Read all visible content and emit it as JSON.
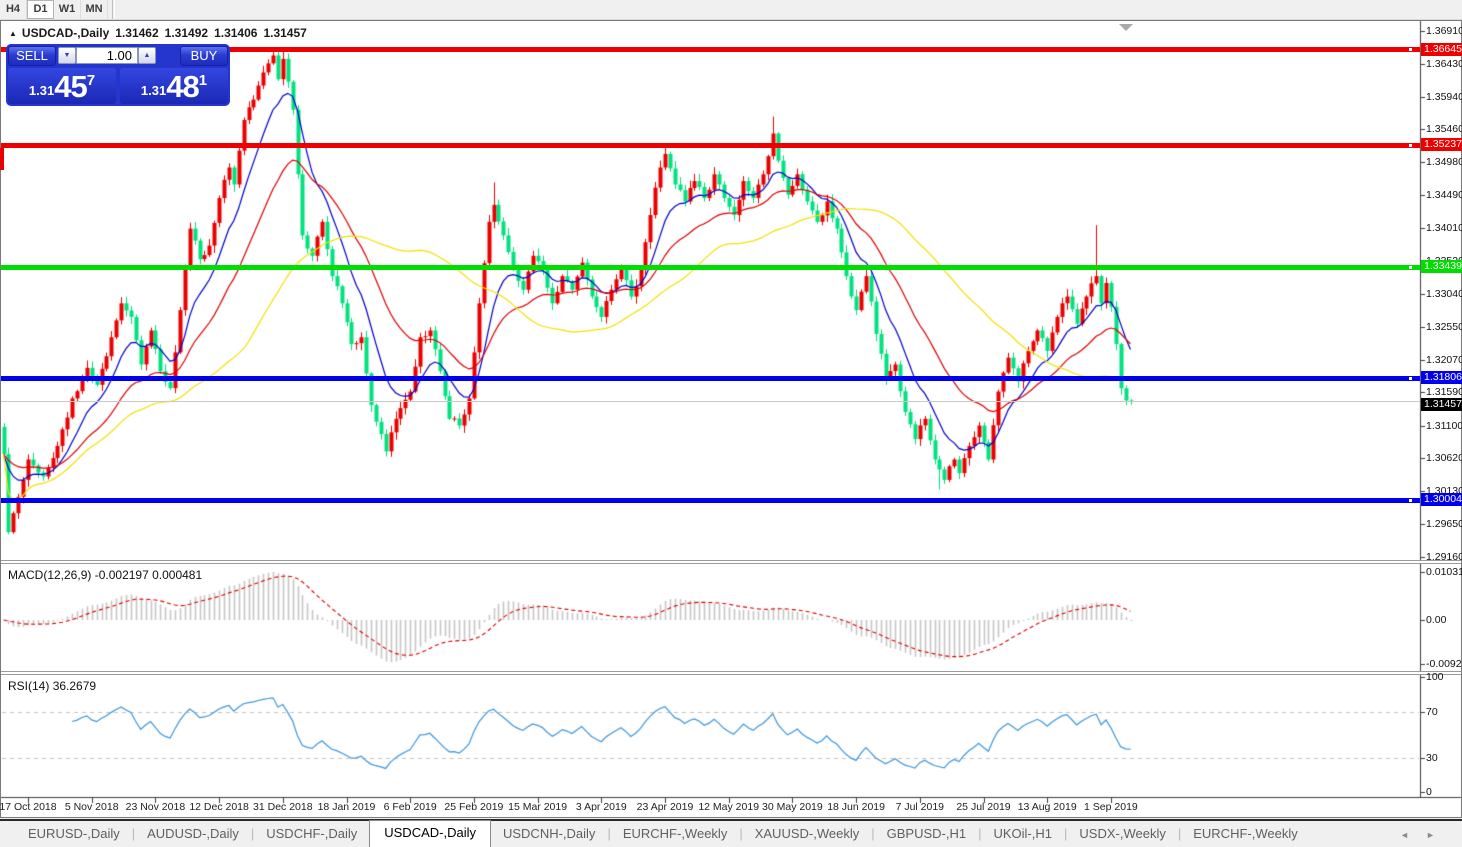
{
  "toolbar": {
    "timeframes": [
      {
        "label": "H4",
        "active": false
      },
      {
        "label": "D1",
        "active": true
      },
      {
        "label": "W1",
        "active": false
      },
      {
        "label": "MN",
        "active": false
      }
    ]
  },
  "window": {
    "collapse_icon": "▲",
    "shift_marker_icon": "triangle-down"
  },
  "chart": {
    "symbol": "USDCAD-,Daily",
    "open": "1.31462",
    "high": "1.31492",
    "low": "1.31406",
    "close": "1.31457"
  },
  "trade_panel": {
    "sell_label": "SELL",
    "buy_label": "BUY",
    "volume": "1.00",
    "down_icon": "▼",
    "up_icon": "▲",
    "sell_price": {
      "prefix": "1.31",
      "big": "45",
      "sup": "7"
    },
    "buy_price": {
      "prefix": "1.31",
      "big": "48",
      "sup": "1"
    }
  },
  "price_axis": {
    "ticks": [
      "1.36910",
      "1.36430",
      "1.35940",
      "1.35460",
      "1.34980",
      "1.34490",
      "1.34010",
      "1.33520",
      "1.33040",
      "1.32550",
      "1.32070",
      "1.31590",
      "1.31100",
      "1.30620",
      "1.30130",
      "1.29650",
      "1.29160"
    ]
  },
  "objects": {
    "hlines": [
      {
        "price": 1.36645,
        "label": "1.36645",
        "color": "#ee0000"
      },
      {
        "price": 1.35237,
        "label": "1.35237",
        "color": "#ee0000"
      },
      {
        "price": 1.33439,
        "label": "1.33439",
        "color": "#00dd00"
      },
      {
        "price": 1.31806,
        "label": "1.31806",
        "color": "#0000ee"
      },
      {
        "price": 1.30004,
        "label": "1.30004",
        "color": "#0000ee"
      }
    ],
    "current_price": {
      "price": 1.31457,
      "label": "1.31457",
      "line_color": "#c8c8c8",
      "box_color": "#000000"
    }
  },
  "macd": {
    "name": "MACD(12,26,9)",
    "values": "-0.002197 0.000481",
    "axis_labels": [
      "0.010311",
      "0.00",
      "-0.009203"
    ],
    "fast": 12,
    "slow": 26,
    "signal": 9,
    "histogram_color": "#c6c6c6",
    "signal_color": "#e00000"
  },
  "rsi": {
    "name": "RSI(14)",
    "value": "36.2679",
    "axis_labels": [
      "100",
      "70",
      "30",
      "0"
    ],
    "levels": [
      70,
      30
    ],
    "period": 14,
    "line_color": "#3d96dc",
    "level_color": "#c4c4c4"
  },
  "date_axis": {
    "labels": [
      "17 Oct 2018",
      "5 Nov 2018",
      "23 Nov 2018",
      "12 Dec 2018",
      "31 Dec 2018",
      "18 Jan 2019",
      "6 Feb 2019",
      "25 Feb 2019",
      "15 Mar 2019",
      "3 Apr 2019",
      "23 Apr 2019",
      "12 May 2019",
      "30 May 2019",
      "18 Jun 2019",
      "7 Jul 2019",
      "25 Jul 2019",
      "13 Aug 2019",
      "1 Sep 2019"
    ]
  },
  "tabs": {
    "items": [
      {
        "label": "EURUSD-,Daily",
        "active": false
      },
      {
        "label": "AUDUSD-,Daily",
        "active": false
      },
      {
        "label": "USDCHF-,Daily",
        "active": false
      },
      {
        "label": "USDCAD-,Daily",
        "active": true
      },
      {
        "label": "USDCNH-,Daily",
        "active": false
      },
      {
        "label": "EURCHF-,Weekly",
        "active": false
      },
      {
        "label": "XAUUSD-,Weekly",
        "active": false
      },
      {
        "label": "GBPUSD-,H1",
        "active": false
      },
      {
        "label": "UKOil-,H1",
        "active": false
      },
      {
        "label": "USDX-,Weekly",
        "active": false
      },
      {
        "label": "EURCHF-,Weekly",
        "active": false
      }
    ],
    "scroll_left_icon": "◄",
    "scroll_right_icon": "►"
  },
  "chart_data": {
    "type": "candlestick",
    "symbol": "USDCAD",
    "timeframe": "Daily",
    "up_color": "#ec0000",
    "down_color": "#00e27e",
    "ylim": [
      1.2915,
      1.3703
    ],
    "first_bar": -5,
    "last_bar": 225,
    "ma_lines": [
      {
        "period": 10,
        "method": "ema",
        "color": "#0000c8"
      },
      {
        "period": 25,
        "method": "ema",
        "color": "#dd0000"
      },
      {
        "period": 50,
        "method": "sma",
        "color": "#f2e200"
      }
    ],
    "price_anchors": [
      [
        -5,
        1.3068
      ],
      [
        -4,
        1.2953
      ],
      [
        -2,
        1.3005
      ],
      [
        0,
        1.306
      ],
      [
        3,
        1.3035
      ],
      [
        6,
        1.308
      ],
      [
        9,
        1.315
      ],
      [
        12,
        1.3195
      ],
      [
        14,
        1.317
      ],
      [
        17,
        1.324
      ],
      [
        19,
        1.329
      ],
      [
        21,
        1.327
      ],
      [
        23,
        1.32
      ],
      [
        25,
        1.325
      ],
      [
        27,
        1.319
      ],
      [
        29,
        1.3165
      ],
      [
        31,
        1.328
      ],
      [
        33,
        1.34
      ],
      [
        35,
        1.3355
      ],
      [
        37,
        1.3375
      ],
      [
        39,
        1.3445
      ],
      [
        41,
        1.349
      ],
      [
        42,
        1.3465
      ],
      [
        44,
        1.356
      ],
      [
        46,
        1.359
      ],
      [
        48,
        1.363
      ],
      [
        50,
        1.3655
      ],
      [
        51,
        1.362
      ],
      [
        52,
        1.365
      ],
      [
        54,
        1.3575
      ],
      [
        55,
        1.348
      ],
      [
        56,
        1.339
      ],
      [
        58,
        1.336
      ],
      [
        60,
        1.341
      ],
      [
        62,
        1.333
      ],
      [
        64,
        1.329
      ],
      [
        66,
        1.323
      ],
      [
        68,
        1.324
      ],
      [
        70,
        1.314
      ],
      [
        73,
        1.3072
      ],
      [
        75,
        1.312
      ],
      [
        78,
        1.316
      ],
      [
        80,
        1.324
      ],
      [
        82,
        1.325
      ],
      [
        84,
        1.319
      ],
      [
        86,
        1.312
      ],
      [
        88,
        1.311
      ],
      [
        90,
        1.315
      ],
      [
        92,
        1.329
      ],
      [
        94,
        1.341
      ],
      [
        95,
        1.3435
      ],
      [
        97,
        1.339
      ],
      [
        99,
        1.334
      ],
      [
        101,
        1.331
      ],
      [
        103,
        1.336
      ],
      [
        105,
        1.334
      ],
      [
        107,
        1.329
      ],
      [
        109,
        1.333
      ],
      [
        111,
        1.331
      ],
      [
        113,
        1.335
      ],
      [
        115,
        1.33
      ],
      [
        117,
        1.327
      ],
      [
        119,
        1.331
      ],
      [
        121,
        1.334
      ],
      [
        123,
        1.33
      ],
      [
        125,
        1.334
      ],
      [
        127,
        1.342
      ],
      [
        129,
        1.349
      ],
      [
        130,
        1.351
      ],
      [
        132,
        1.3465
      ],
      [
        134,
        1.344
      ],
      [
        136,
        1.347
      ],
      [
        138,
        1.3445
      ],
      [
        140,
        1.348
      ],
      [
        142,
        1.3445
      ],
      [
        144,
        1.342
      ],
      [
        146,
        1.347
      ],
      [
        148,
        1.3445
      ],
      [
        150,
        1.348
      ],
      [
        152,
        1.354
      ],
      [
        153,
        1.35
      ],
      [
        155,
        1.345
      ],
      [
        157,
        1.348
      ],
      [
        159,
        1.344
      ],
      [
        161,
        1.341
      ],
      [
        163,
        1.344
      ],
      [
        165,
        1.34
      ],
      [
        167,
        1.333
      ],
      [
        169,
        1.328
      ],
      [
        171,
        1.333
      ],
      [
        173,
        1.3245
      ],
      [
        175,
        1.318
      ],
      [
        177,
        1.32
      ],
      [
        179,
        1.313
      ],
      [
        181,
        1.309
      ],
      [
        183,
        1.312
      ],
      [
        185,
        1.306
      ],
      [
        187,
        1.303
      ],
      [
        189,
        1.306
      ],
      [
        190,
        1.304
      ],
      [
        192,
        1.308
      ],
      [
        194,
        1.311
      ],
      [
        196,
        1.306
      ],
      [
        198,
        1.316
      ],
      [
        200,
        1.321
      ],
      [
        202,
        1.3175
      ],
      [
        204,
        1.322
      ],
      [
        206,
        1.325
      ],
      [
        208,
        1.322
      ],
      [
        210,
        1.327
      ],
      [
        212,
        1.33
      ],
      [
        214,
        1.326
      ],
      [
        216,
        1.33
      ],
      [
        218,
        1.333
      ],
      [
        219,
        1.329
      ],
      [
        220,
        1.332
      ],
      [
        221,
        1.3285
      ],
      [
        222,
        1.323
      ],
      [
        223,
        1.3165
      ],
      [
        224,
        1.3147
      ],
      [
        225,
        1.31457
      ]
    ],
    "wick_overrides": [
      [
        -4,
        "l",
        1.295
      ],
      [
        50,
        "h",
        1.36645
      ],
      [
        52,
        "h",
        1.3663
      ],
      [
        95,
        "h",
        1.3468
      ],
      [
        152,
        "h",
        1.3565
      ],
      [
        186,
        "l",
        1.3016
      ],
      [
        218,
        "h",
        1.3405
      ],
      [
        225,
        "l",
        1.31406
      ],
      [
        225,
        "h",
        1.31492
      ]
    ]
  }
}
